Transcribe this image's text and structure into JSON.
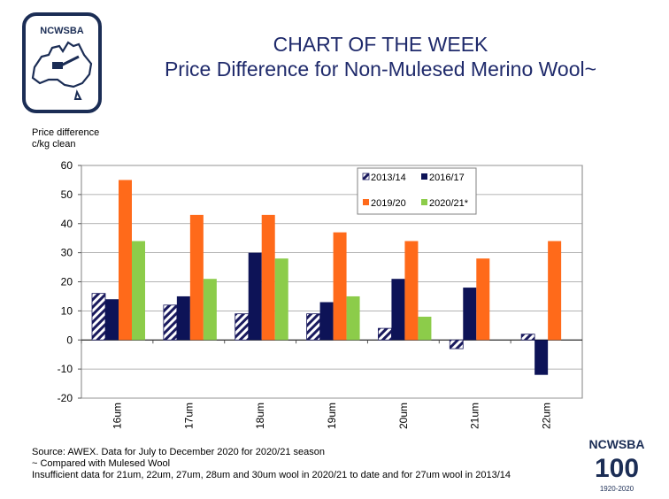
{
  "logo": {
    "text": "NCWSBA"
  },
  "header": {
    "title": "CHART OF THE WEEK",
    "subtitle": "Price Difference for Non-Mulesed Merino Wool~"
  },
  "axis": {
    "ylabel_line1": "Price difference",
    "ylabel_line2": "c/kg clean"
  },
  "chart_data": {
    "type": "bar",
    "categories": [
      "16um",
      "17um",
      "18um",
      "19um",
      "20um",
      "21um",
      "22um"
    ],
    "series": [
      {
        "name": "2013/14",
        "values": [
          16,
          12,
          9,
          9,
          4,
          -3,
          2
        ],
        "color": "#1a1a5e",
        "pattern": "diagonal-stripes"
      },
      {
        "name": "2016/17",
        "values": [
          14,
          15,
          30,
          13,
          21,
          18,
          -12
        ],
        "color": "#0d1357"
      },
      {
        "name": "2019/20",
        "values": [
          55,
          43,
          43,
          37,
          34,
          28,
          34
        ],
        "color": "#ff6a1a"
      },
      {
        "name": "2020/21*",
        "values": [
          34,
          21,
          28,
          15,
          8,
          null,
          null
        ],
        "color": "#8ccc4a"
      }
    ],
    "ylim": [
      -20,
      60
    ],
    "yticks": [
      -20,
      -10,
      0,
      10,
      20,
      30,
      40,
      50,
      60
    ],
    "grid": true,
    "legend_position": "top-right"
  },
  "notes": {
    "line1": "Source: AWEX. Data for July to December 2020 for 2020/21 season",
    "line2": "~ Compared with Mulesed Wool",
    "line3": "Insufficient data for 21um, 22um, 27um, 28um and 30um wool in 2020/21 to date and for 27um wool in 2013/14"
  },
  "badge": {
    "text": "NCWSBA",
    "number": "100",
    "years": "1920-2020"
  }
}
